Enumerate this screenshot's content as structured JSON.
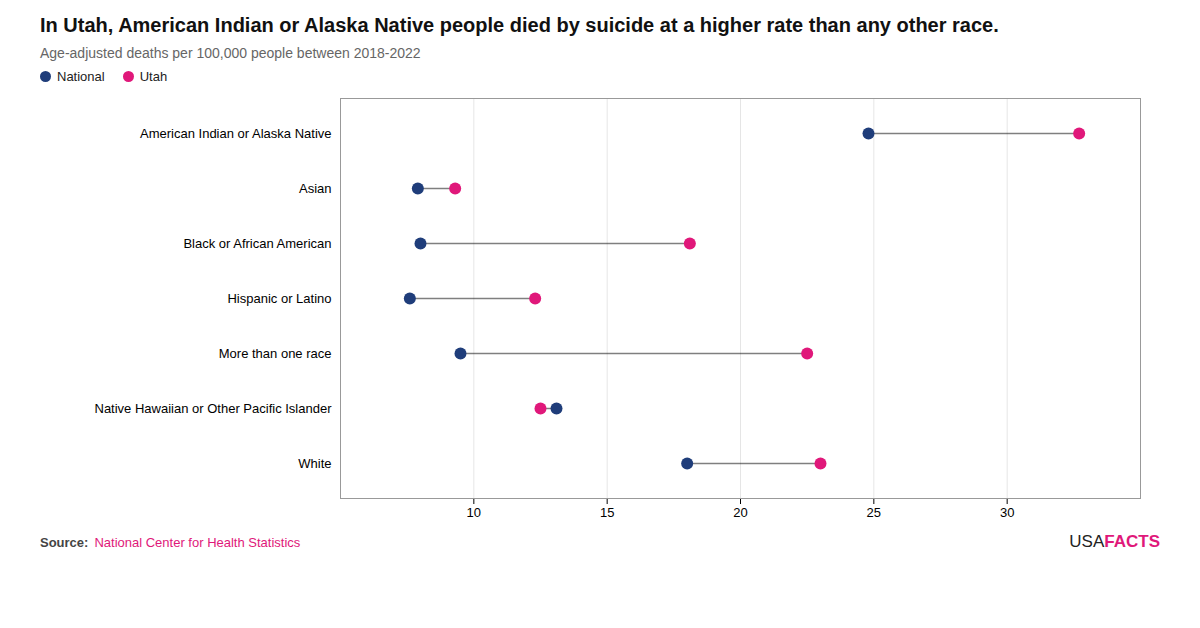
{
  "chart_data": {
    "type": "dumbbell",
    "title": "In Utah, American Indian or Alaska Native people died by suicide at a higher rate than any other race.",
    "subtitle": "Age-adjusted deaths per 100,000 people between 2018-2022",
    "source_label": "Source:",
    "source_text": "National Center for Health Statistics",
    "branding": [
      "USA",
      "FACTS"
    ],
    "categories": [
      "American Indian or Alaska Native",
      "Asian",
      "Black or African American",
      "Hispanic or Latino",
      "More than one race",
      "Native Hawaiian or Other Pacific Islander",
      "White"
    ],
    "series": [
      {
        "name": "National",
        "color": "#1f3d7a",
        "values": [
          24.8,
          7.9,
          8.0,
          7.6,
          9.5,
          13.1,
          18.0
        ]
      },
      {
        "name": "Utah",
        "color": "#e0187a",
        "values": [
          32.7,
          9.3,
          18.1,
          12.3,
          22.5,
          12.5,
          23.0
        ]
      }
    ],
    "xlim": [
      5,
      35
    ],
    "xticks": [
      10,
      15,
      20,
      25,
      30
    ],
    "grid": true,
    "legend": "upper left"
  }
}
